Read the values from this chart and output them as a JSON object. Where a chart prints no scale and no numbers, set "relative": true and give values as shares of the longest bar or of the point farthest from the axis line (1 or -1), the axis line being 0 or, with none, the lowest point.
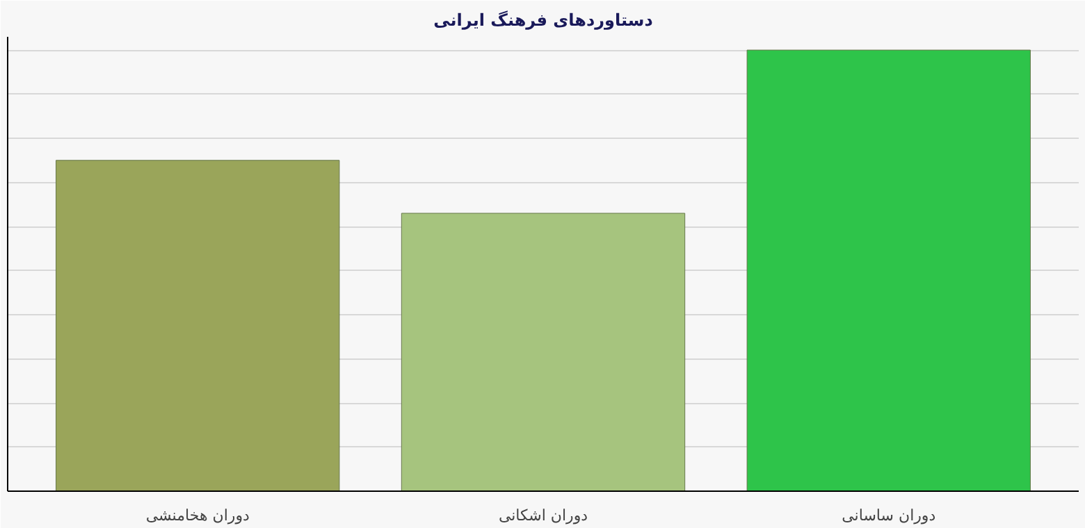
{
  "chart_data": {
    "type": "bar",
    "title": "دستاوردهای فرهنگ ایرانی",
    "categories": [
      "دوران هخامنشی",
      "دوران اشکانی",
      "دوران ساسانی"
    ],
    "values": [
      0.75,
      0.63,
      1
    ],
    "colors": [
      "#9aa55a",
      "#a6c47e",
      "#2ec44a"
    ],
    "relative": true,
    "grid": "y"
  }
}
